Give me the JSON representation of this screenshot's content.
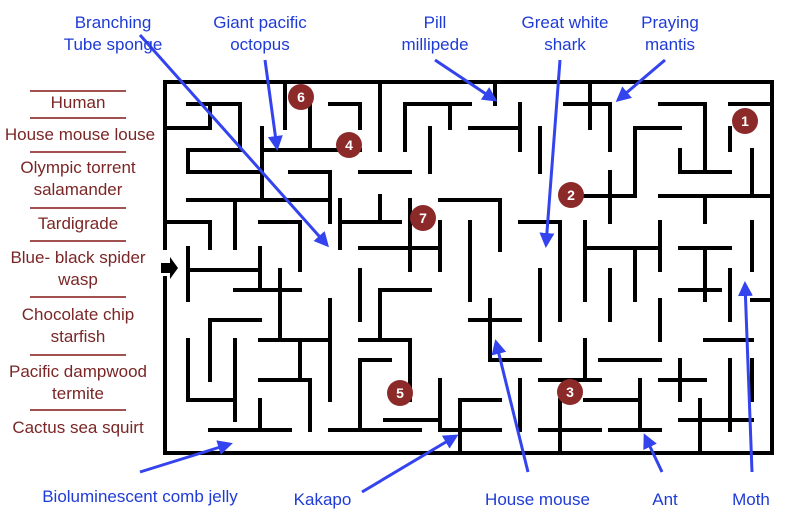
{
  "top_labels": [
    "Branching\nTube sponge",
    "Giant pacific\noctopus",
    "Pill\nmillipede",
    "Great white\nshark",
    "Praying\nmantis"
  ],
  "bottom_labels": [
    "Bioluminescent comb jelly",
    "Kakapo",
    "House mouse",
    "Ant",
    "Moth"
  ],
  "left_labels": [
    "Human",
    "House mouse louse",
    "Olympic torrent\nsalamander",
    "Tardigrade",
    "Blue- black spider\nwasp",
    "Chocolate chip\nstarfish",
    "Pacific dampwood\ntermite",
    "Cactus sea squirt"
  ],
  "badges": [
    "1",
    "2",
    "3",
    "4",
    "5",
    "6",
    "7"
  ],
  "colors": {
    "arrow_blue": "#3344ee",
    "label_blue": "#1f3bd6",
    "label_red": "#7a2626",
    "badge": "#8c2a2a",
    "wall": "#000000"
  }
}
